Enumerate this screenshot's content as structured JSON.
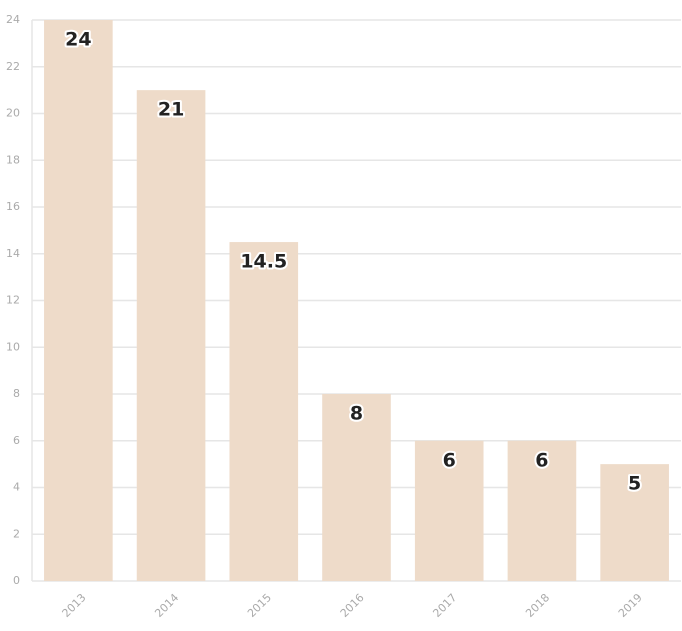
{
  "chart_data": {
    "type": "bar",
    "categories": [
      "2013",
      "2014",
      "2015",
      "2016",
      "2017",
      "2018",
      "2019"
    ],
    "values": [
      24,
      21,
      14.5,
      8,
      6,
      6,
      5
    ],
    "color": "#eedbc9",
    "ylim": [
      0,
      24
    ],
    "yticks": [
      0,
      2,
      4,
      6,
      8,
      10,
      12,
      14,
      16,
      18,
      20,
      22,
      24
    ],
    "grid": true
  }
}
